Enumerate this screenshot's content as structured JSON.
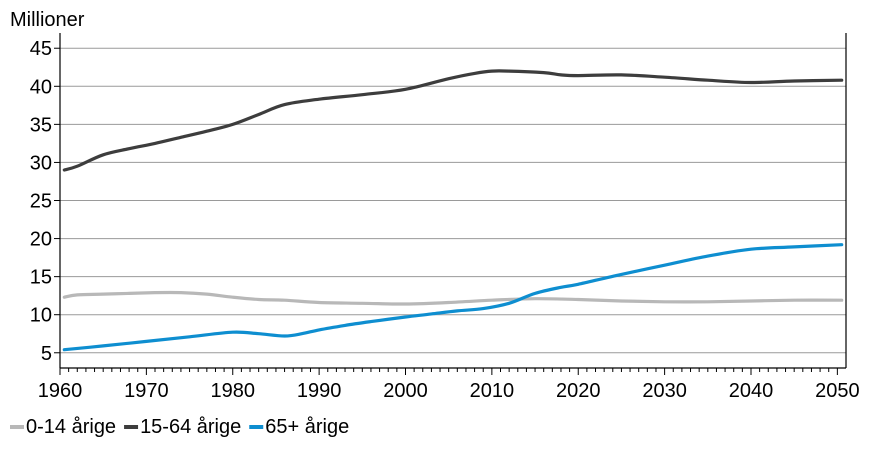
{
  "chart_data": {
    "type": "line",
    "unit_label": "Millioner",
    "xlim": [
      1960,
      2051
    ],
    "ylim": [
      3,
      47
    ],
    "x_ticks": [
      1960,
      1970,
      1980,
      1990,
      2000,
      2010,
      2020,
      2030,
      2040,
      2050
    ],
    "y_ticks": [
      5,
      10,
      15,
      20,
      25,
      30,
      35,
      40,
      45
    ],
    "grid": "horizontal",
    "legend_position": "bottom-left",
    "series": [
      {
        "name": "0-14 årige",
        "color": "#b8b8b8",
        "x": [
          1960.5,
          1962,
          1965,
          1968,
          1971,
          1974,
          1977,
          1980,
          1983,
          1986,
          1990,
          1995,
          2000,
          2005,
          2010,
          2015,
          2020,
          2025,
          2030,
          2035,
          2040,
          2045,
          2050.5
        ],
        "y": [
          12.3,
          12.6,
          12.7,
          12.8,
          12.9,
          12.9,
          12.7,
          12.3,
          12.0,
          11.9,
          11.6,
          11.5,
          11.4,
          11.6,
          11.9,
          12.1,
          12.0,
          11.8,
          11.7,
          11.7,
          11.8,
          11.9,
          11.9
        ]
      },
      {
        "name": "15-64 årige",
        "color": "#3d3d3d",
        "x": [
          1960.5,
          1962,
          1965,
          1968,
          1971,
          1974,
          1977,
          1980,
          1983,
          1986,
          1990,
          1995,
          2000,
          2005,
          2008,
          2010,
          2012,
          2016,
          2018,
          2020,
          2025,
          2030,
          2035,
          2040,
          2045,
          2050.5
        ],
        "y": [
          29.0,
          29.5,
          31.0,
          31.8,
          32.5,
          33.3,
          34.1,
          35.0,
          36.3,
          37.6,
          38.3,
          38.9,
          39.6,
          41.0,
          41.7,
          42.0,
          42.0,
          41.8,
          41.5,
          41.4,
          41.5,
          41.2,
          40.8,
          40.5,
          40.7,
          40.8
        ]
      },
      {
        "name": "65+ årige",
        "color": "#0e8ed0",
        "x": [
          1960.5,
          1965,
          1970,
          1975,
          1980,
          1983,
          1986,
          1988,
          1990,
          1993,
          1996,
          2000,
          2003,
          2006,
          2009,
          2012,
          2015,
          2018,
          2020,
          2025,
          2030,
          2035,
          2040,
          2045,
          2050.5
        ],
        "y": [
          5.4,
          5.9,
          6.5,
          7.1,
          7.7,
          7.5,
          7.2,
          7.5,
          8.0,
          8.6,
          9.1,
          9.7,
          10.1,
          10.5,
          10.8,
          11.5,
          12.8,
          13.6,
          14.0,
          15.3,
          16.5,
          17.7,
          18.6,
          18.9,
          19.2
        ]
      }
    ]
  }
}
